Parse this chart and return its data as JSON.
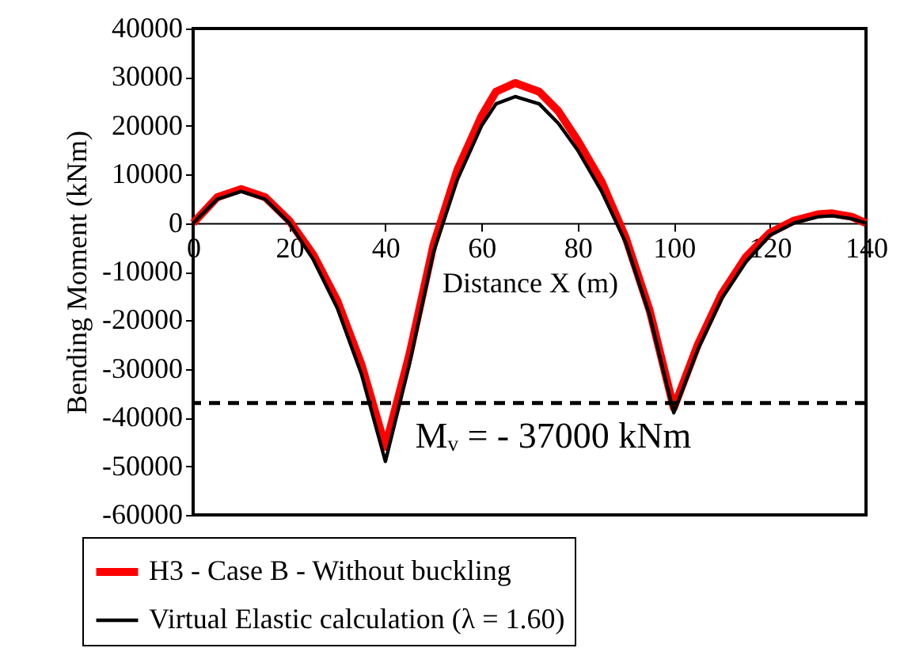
{
  "chart_data": {
    "type": "line",
    "xlabel": "Distance X (m)",
    "ylabel": "Bending Moment (kNm)",
    "xlim": [
      0,
      140
    ],
    "xticks": [
      0,
      20,
      40,
      60,
      80,
      100,
      120,
      140
    ],
    "ylim": [
      -60000,
      40000
    ],
    "yticks": [
      -60000,
      -50000,
      -40000,
      -30000,
      -20000,
      -10000,
      0,
      10000,
      20000,
      30000,
      40000
    ],
    "x": [
      0,
      5,
      10,
      15,
      20,
      25,
      30,
      35,
      40,
      45,
      50,
      55,
      60,
      63,
      67,
      72,
      76,
      80,
      85,
      90,
      95,
      100,
      105,
      110,
      115,
      120,
      125,
      130,
      133,
      137,
      140
    ],
    "series": [
      {
        "name": "H3 - Case B - Without buckling",
        "color": "#ff0000",
        "values": [
          0,
          5300,
          7000,
          5300,
          500,
          -6500,
          -16000,
          -29000,
          -46000,
          -27000,
          -4500,
          11000,
          22000,
          27000,
          28800,
          27000,
          23000,
          17000,
          8500,
          -3000,
          -18000,
          -38000,
          -25000,
          -14500,
          -7000,
          -2000,
          500,
          1800,
          2000,
          1300,
          0
        ]
      },
      {
        "name": "Virtual Elastic calculation (λ = 1.60)",
        "color": "#000000",
        "values": [
          0,
          4900,
          6500,
          4900,
          0,
          -7500,
          -17500,
          -31000,
          -49000,
          -29000,
          -6000,
          9000,
          20000,
          24500,
          26000,
          24500,
          20500,
          15000,
          6500,
          -4000,
          -19000,
          -39000,
          -26000,
          -15500,
          -8000,
          -2500,
          0,
          1300,
          1500,
          900,
          0
        ]
      }
    ],
    "ref_lines": [
      {
        "axis": "y",
        "value": -37000,
        "label": "Mᵥ = - 37000 kNm",
        "color": "#000000",
        "line_style": "dashed"
      }
    ],
    "legend": "bottom",
    "grid": false,
    "marker": "none",
    "line_style": "solid"
  }
}
